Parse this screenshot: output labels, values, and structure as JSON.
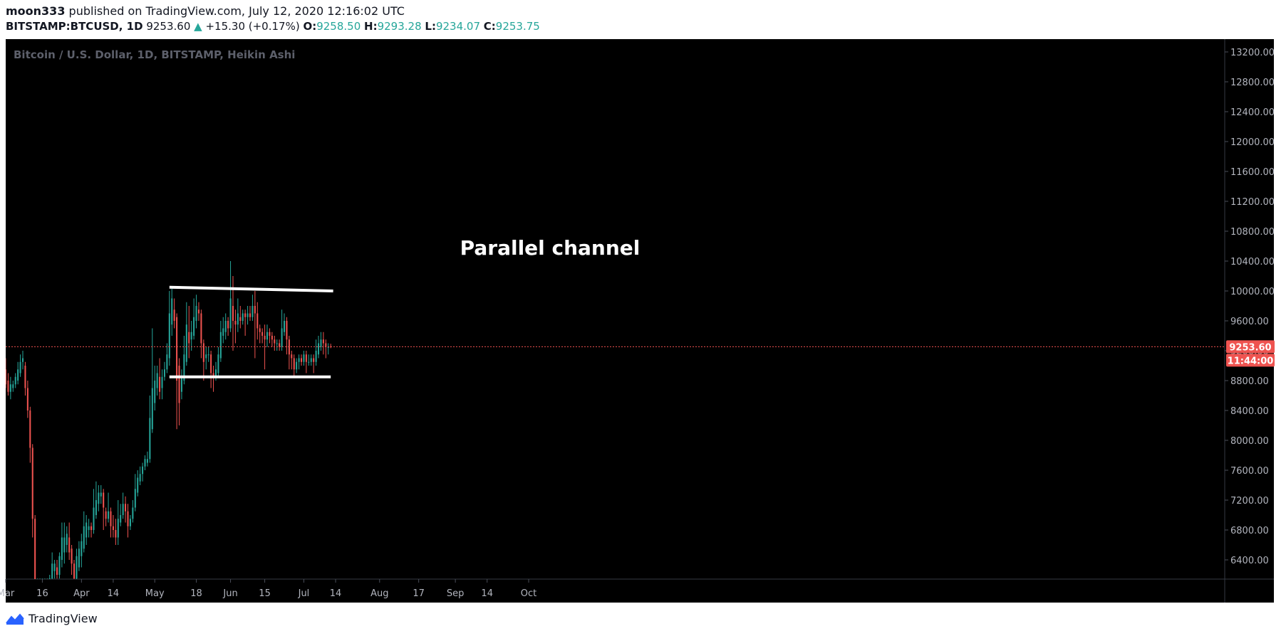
{
  "header": {
    "author": "moon333",
    "published_text": "published on TradingView.com, July 12, 2020 12:16:02 UTC",
    "symbol": "BITSTAMP:BTCUSD, 1D",
    "price": "9253.60",
    "change": "+15.30 (+0.17%)",
    "open_label": "O:",
    "open": "9258.50",
    "high_label": "H:",
    "high": "9293.28",
    "low_label": "L:",
    "low": "9234.07",
    "close_label": "C:",
    "close": "9253.75"
  },
  "chart_title": "Bitcoin / U.S. Dollar, 1D, BITSTAMP, Heikin Ashi",
  "annotation": "Parallel channel",
  "footer": {
    "brand": "TradingView"
  },
  "colors": {
    "bg": "#000000",
    "up": "#26a69a",
    "down": "#ef5350",
    "axis_text": "#b2b5be",
    "channel": "#ffffff",
    "label_bg": "#ef5350"
  },
  "price_label": "9253.60",
  "countdown_label": "11:44:00",
  "chart_data": {
    "type": "candlestick",
    "style": "Heikin Ashi",
    "grid": false,
    "ylim": [
      6150,
      13350
    ],
    "y_ticks": [
      13200,
      12800,
      12400,
      12000,
      11600,
      11200,
      10800,
      10400,
      10000,
      9600,
      9200,
      8800,
      8400,
      8000,
      7600,
      7200,
      6800,
      6400
    ],
    "y_tick_labels": [
      "13200.00",
      "12800.00",
      "12400.00",
      "12000.00",
      "11600.00",
      "11200.00",
      "10800.00",
      "10400.00",
      "10000.00",
      "9600.00",
      "9200.00",
      "8800.00",
      "8400.00",
      "8000.00",
      "7600.00",
      "7200.00",
      "6800.00",
      "6400.00"
    ],
    "x_tick_labels": [
      {
        "label": "Mar",
        "date": "2020-03-01"
      },
      {
        "label": "16",
        "date": "2020-03-16"
      },
      {
        "label": "Apr",
        "date": "2020-04-01"
      },
      {
        "label": "14",
        "date": "2020-04-14"
      },
      {
        "label": "May",
        "date": "2020-05-01"
      },
      {
        "label": "18",
        "date": "2020-05-18"
      },
      {
        "label": "Jun",
        "date": "2020-06-01"
      },
      {
        "label": "15",
        "date": "2020-06-15"
      },
      {
        "label": "Jul",
        "date": "2020-07-01"
      },
      {
        "label": "14",
        "date": "2020-07-14"
      },
      {
        "label": "Aug",
        "date": "2020-08-01"
      },
      {
        "label": "17",
        "date": "2020-08-17"
      },
      {
        "label": "Sep",
        "date": "2020-09-01"
      },
      {
        "label": "14",
        "date": "2020-09-14"
      },
      {
        "label": "Oct",
        "date": "2020-10-01"
      }
    ],
    "last_price": 9253.6,
    "channel_lines": [
      {
        "start": [
          "2020-05-07",
          10050
        ],
        "end": [
          "2020-07-13",
          10000
        ]
      },
      {
        "start": [
          "2020-05-07",
          8850
        ],
        "end": [
          "2020-07-12",
          8850
        ]
      }
    ],
    "candles": [
      {
        "date": "2020-03-01",
        "o": 8950,
        "h": 9100,
        "l": 8700,
        "c": 8750
      },
      {
        "date": "2020-03-02",
        "o": 8800,
        "h": 8900,
        "l": 8600,
        "c": 8650
      },
      {
        "date": "2020-03-03",
        "o": 8650,
        "h": 8850,
        "l": 8550,
        "c": 8750
      },
      {
        "date": "2020-03-04",
        "o": 8700,
        "h": 8800,
        "l": 8650,
        "c": 8750
      },
      {
        "date": "2020-03-05",
        "o": 8750,
        "h": 8900,
        "l": 8700,
        "c": 8850
      },
      {
        "date": "2020-03-06",
        "o": 8800,
        "h": 9050,
        "l": 8750,
        "c": 8950
      },
      {
        "date": "2020-03-07",
        "o": 8900,
        "h": 9150,
        "l": 8850,
        "c": 9050
      },
      {
        "date": "2020-03-08",
        "o": 9050,
        "h": 9200,
        "l": 8950,
        "c": 9100
      },
      {
        "date": "2020-03-09",
        "o": 9000,
        "h": 9050,
        "l": 8600,
        "c": 8700
      },
      {
        "date": "2020-03-10",
        "o": 8700,
        "h": 8800,
        "l": 8300,
        "c": 8400
      },
      {
        "date": "2020-03-11",
        "o": 8400,
        "h": 8450,
        "l": 7700,
        "c": 7900
      },
      {
        "date": "2020-03-12",
        "o": 7900,
        "h": 7950,
        "l": 6700,
        "c": 6950
      },
      {
        "date": "2020-03-13",
        "o": 6950,
        "h": 7000,
        "l": 6100,
        "c": 6100
      },
      {
        "date": "2020-03-14",
        "o": 6100,
        "h": 6150,
        "l": 6100,
        "c": 6100
      },
      {
        "date": "2020-03-15",
        "o": 6100,
        "h": 6150,
        "l": 6100,
        "c": 6100
      },
      {
        "date": "2020-03-16",
        "o": 6100,
        "h": 6150,
        "l": 6100,
        "c": 6100
      },
      {
        "date": "2020-03-17",
        "o": 6100,
        "h": 6150,
        "l": 6100,
        "c": 6100
      },
      {
        "date": "2020-03-18",
        "o": 6100,
        "h": 6150,
        "l": 6100,
        "c": 6100
      },
      {
        "date": "2020-03-19",
        "o": 6100,
        "h": 6200,
        "l": 6100,
        "c": 6150
      },
      {
        "date": "2020-03-20",
        "o": 6150,
        "h": 6500,
        "l": 6100,
        "c": 6350
      },
      {
        "date": "2020-03-21",
        "o": 6250,
        "h": 6400,
        "l": 6150,
        "c": 6350
      },
      {
        "date": "2020-03-22",
        "o": 6300,
        "h": 6400,
        "l": 6150,
        "c": 6200
      },
      {
        "date": "2020-03-23",
        "o": 6200,
        "h": 6500,
        "l": 6150,
        "c": 6450
      },
      {
        "date": "2020-03-24",
        "o": 6400,
        "h": 6900,
        "l": 6300,
        "c": 6700
      },
      {
        "date": "2020-03-25",
        "o": 6500,
        "h": 6900,
        "l": 6350,
        "c": 6700
      },
      {
        "date": "2020-03-26",
        "o": 6600,
        "h": 6850,
        "l": 6500,
        "c": 6750
      },
      {
        "date": "2020-03-27",
        "o": 6700,
        "h": 6900,
        "l": 6400,
        "c": 6500
      },
      {
        "date": "2020-03-28",
        "o": 6550,
        "h": 6600,
        "l": 6200,
        "c": 6350
      },
      {
        "date": "2020-03-29",
        "o": 6350,
        "h": 6400,
        "l": 6000,
        "c": 6150
      },
      {
        "date": "2020-03-30",
        "o": 6150,
        "h": 6550,
        "l": 6100,
        "c": 6450
      },
      {
        "date": "2020-03-31",
        "o": 6300,
        "h": 6650,
        "l": 6250,
        "c": 6550
      },
      {
        "date": "2020-04-01",
        "o": 6450,
        "h": 6750,
        "l": 6300,
        "c": 6650
      },
      {
        "date": "2020-04-02",
        "o": 6550,
        "h": 7050,
        "l": 6500,
        "c": 6850
      },
      {
        "date": "2020-04-03",
        "o": 6700,
        "h": 7000,
        "l": 6600,
        "c": 6900
      },
      {
        "date": "2020-04-04",
        "o": 6800,
        "h": 6950,
        "l": 6700,
        "c": 6850
      },
      {
        "date": "2020-04-05",
        "o": 6850,
        "h": 6900,
        "l": 6700,
        "c": 6800
      },
      {
        "date": "2020-04-06",
        "o": 6800,
        "h": 7350,
        "l": 6750,
        "c": 7100
      },
      {
        "date": "2020-04-07",
        "o": 7000,
        "h": 7450,
        "l": 6950,
        "c": 7200
      },
      {
        "date": "2020-04-08",
        "o": 7150,
        "h": 7400,
        "l": 7050,
        "c": 7300
      },
      {
        "date": "2020-04-09",
        "o": 7250,
        "h": 7400,
        "l": 7150,
        "c": 7300
      },
      {
        "date": "2020-04-10",
        "o": 7300,
        "h": 7350,
        "l": 6800,
        "c": 7100
      },
      {
        "date": "2020-04-11",
        "o": 7050,
        "h": 7100,
        "l": 6850,
        "c": 6950
      },
      {
        "date": "2020-04-12",
        "o": 6950,
        "h": 7300,
        "l": 6900,
        "c": 7050
      },
      {
        "date": "2020-04-13",
        "o": 7050,
        "h": 7100,
        "l": 6700,
        "c": 6850
      },
      {
        "date": "2020-04-14",
        "o": 6850,
        "h": 7000,
        "l": 6700,
        "c": 6800
      },
      {
        "date": "2020-04-15",
        "o": 6800,
        "h": 6950,
        "l": 6600,
        "c": 6700
      },
      {
        "date": "2020-04-16",
        "o": 6700,
        "h": 7200,
        "l": 6600,
        "c": 6950
      },
      {
        "date": "2020-04-17",
        "o": 6900,
        "h": 7150,
        "l": 6850,
        "c": 7000
      },
      {
        "date": "2020-04-18",
        "o": 7000,
        "h": 7300,
        "l": 6950,
        "c": 7150
      },
      {
        "date": "2020-04-19",
        "o": 7150,
        "h": 7250,
        "l": 6900,
        "c": 7050
      },
      {
        "date": "2020-04-20",
        "o": 7050,
        "h": 7150,
        "l": 6700,
        "c": 6850
      },
      {
        "date": "2020-04-21",
        "o": 6850,
        "h": 7000,
        "l": 6800,
        "c": 6950
      },
      {
        "date": "2020-04-22",
        "o": 6950,
        "h": 7200,
        "l": 6900,
        "c": 7100
      },
      {
        "date": "2020-04-23",
        "o": 7100,
        "h": 7550,
        "l": 7050,
        "c": 7350
      },
      {
        "date": "2020-04-24",
        "o": 7300,
        "h": 7600,
        "l": 7250,
        "c": 7500
      },
      {
        "date": "2020-04-25",
        "o": 7450,
        "h": 7650,
        "l": 7400,
        "c": 7550
      },
      {
        "date": "2020-04-26",
        "o": 7550,
        "h": 7700,
        "l": 7450,
        "c": 7650
      },
      {
        "date": "2020-04-27",
        "o": 7650,
        "h": 7800,
        "l": 7600,
        "c": 7750
      },
      {
        "date": "2020-04-28",
        "o": 7700,
        "h": 7850,
        "l": 7650,
        "c": 7750
      },
      {
        "date": "2020-04-29",
        "o": 7750,
        "h": 8600,
        "l": 7700,
        "c": 8300
      },
      {
        "date": "2020-04-30",
        "o": 8150,
        "h": 9500,
        "l": 8100,
        "c": 8700
      },
      {
        "date": "2020-05-01",
        "o": 8500,
        "h": 9000,
        "l": 8400,
        "c": 8800
      },
      {
        "date": "2020-05-02",
        "o": 8700,
        "h": 9000,
        "l": 8600,
        "c": 8900
      },
      {
        "date": "2020-05-03",
        "o": 8850,
        "h": 9100,
        "l": 8550,
        "c": 8650
      },
      {
        "date": "2020-05-04",
        "o": 8700,
        "h": 8950,
        "l": 8550,
        "c": 8850
      },
      {
        "date": "2020-05-05",
        "o": 8850,
        "h": 9050,
        "l": 8800,
        "c": 8950
      },
      {
        "date": "2020-05-06",
        "o": 8950,
        "h": 9300,
        "l": 8900,
        "c": 9150
      },
      {
        "date": "2020-05-07",
        "o": 9100,
        "h": 10000,
        "l": 9000,
        "c": 9700
      },
      {
        "date": "2020-05-08",
        "o": 9550,
        "h": 10050,
        "l": 9400,
        "c": 9900
      },
      {
        "date": "2020-05-09",
        "o": 9750,
        "h": 9900,
        "l": 9500,
        "c": 9600
      },
      {
        "date": "2020-05-10",
        "o": 9650,
        "h": 9700,
        "l": 8150,
        "c": 8800
      },
      {
        "date": "2020-05-11",
        "o": 9000,
        "h": 9100,
        "l": 8200,
        "c": 8500
      },
      {
        "date": "2020-05-12",
        "o": 8650,
        "h": 8950,
        "l": 8550,
        "c": 8850
      },
      {
        "date": "2020-05-13",
        "o": 8800,
        "h": 9400,
        "l": 8750,
        "c": 9150
      },
      {
        "date": "2020-05-14",
        "o": 9050,
        "h": 9850,
        "l": 9000,
        "c": 9550
      },
      {
        "date": "2020-05-15",
        "o": 9450,
        "h": 9800,
        "l": 9100,
        "c": 9300
      },
      {
        "date": "2020-05-16",
        "o": 9350,
        "h": 9600,
        "l": 9200,
        "c": 9450
      },
      {
        "date": "2020-05-17",
        "o": 9400,
        "h": 9900,
        "l": 9350,
        "c": 9650
      },
      {
        "date": "2020-05-18",
        "o": 9600,
        "h": 9950,
        "l": 9500,
        "c": 9800
      },
      {
        "date": "2020-05-19",
        "o": 9750,
        "h": 9850,
        "l": 9600,
        "c": 9700
      },
      {
        "date": "2020-05-20",
        "o": 9700,
        "h": 9750,
        "l": 9100,
        "c": 9300
      },
      {
        "date": "2020-05-21",
        "o": 9300,
        "h": 9350,
        "l": 8800,
        "c": 9050
      },
      {
        "date": "2020-05-22",
        "o": 9100,
        "h": 9250,
        "l": 8950,
        "c": 9150
      },
      {
        "date": "2020-05-23",
        "o": 9150,
        "h": 9250,
        "l": 9050,
        "c": 9150
      },
      {
        "date": "2020-05-24",
        "o": 9150,
        "h": 9200,
        "l": 8700,
        "c": 8900
      },
      {
        "date": "2020-05-25",
        "o": 8900,
        "h": 9000,
        "l": 8650,
        "c": 8850
      },
      {
        "date": "2020-05-26",
        "o": 8850,
        "h": 9050,
        "l": 8800,
        "c": 8950
      },
      {
        "date": "2020-05-27",
        "o": 8900,
        "h": 9250,
        "l": 8850,
        "c": 9150
      },
      {
        "date": "2020-05-28",
        "o": 9100,
        "h": 9600,
        "l": 9050,
        "c": 9450
      },
      {
        "date": "2020-05-29",
        "o": 9400,
        "h": 9650,
        "l": 9300,
        "c": 9500
      },
      {
        "date": "2020-05-30",
        "o": 9450,
        "h": 9700,
        "l": 9350,
        "c": 9600
      },
      {
        "date": "2020-05-31",
        "o": 9600,
        "h": 9650,
        "l": 9400,
        "c": 9500
      },
      {
        "date": "2020-06-01",
        "o": 9500,
        "h": 10400,
        "l": 9450,
        "c": 9900
      },
      {
        "date": "2020-06-02",
        "o": 9800,
        "h": 10200,
        "l": 9200,
        "c": 9600
      },
      {
        "date": "2020-06-03",
        "o": 9600,
        "h": 9750,
        "l": 9300,
        "c": 9550
      },
      {
        "date": "2020-06-04",
        "o": 9550,
        "h": 9900,
        "l": 9450,
        "c": 9700
      },
      {
        "date": "2020-06-05",
        "o": 9650,
        "h": 9800,
        "l": 9500,
        "c": 9600
      },
      {
        "date": "2020-06-06",
        "o": 9600,
        "h": 9750,
        "l": 9550,
        "c": 9700
      },
      {
        "date": "2020-06-07",
        "o": 9700,
        "h": 9750,
        "l": 9400,
        "c": 9650
      },
      {
        "date": "2020-06-08",
        "o": 9650,
        "h": 9800,
        "l": 9550,
        "c": 9700
      },
      {
        "date": "2020-06-09",
        "o": 9700,
        "h": 9800,
        "l": 9600,
        "c": 9650
      },
      {
        "date": "2020-06-10",
        "o": 9650,
        "h": 9950,
        "l": 9600,
        "c": 9800
      },
      {
        "date": "2020-06-11",
        "o": 9800,
        "h": 10000,
        "l": 9100,
        "c": 9700
      },
      {
        "date": "2020-06-12",
        "o": 9700,
        "h": 9850,
        "l": 9350,
        "c": 9500
      },
      {
        "date": "2020-06-13",
        "o": 9500,
        "h": 9550,
        "l": 9300,
        "c": 9450
      },
      {
        "date": "2020-06-14",
        "o": 9450,
        "h": 9500,
        "l": 9300,
        "c": 9400
      },
      {
        "date": "2020-06-15",
        "o": 9400,
        "h": 9550,
        "l": 8950,
        "c": 9350
      },
      {
        "date": "2020-06-16",
        "o": 9350,
        "h": 9550,
        "l": 9250,
        "c": 9450
      },
      {
        "date": "2020-06-17",
        "o": 9450,
        "h": 9500,
        "l": 9300,
        "c": 9400
      },
      {
        "date": "2020-06-18",
        "o": 9400,
        "h": 9450,
        "l": 9250,
        "c": 9350
      },
      {
        "date": "2020-06-19",
        "o": 9350,
        "h": 9400,
        "l": 9200,
        "c": 9300
      },
      {
        "date": "2020-06-20",
        "o": 9300,
        "h": 9350,
        "l": 9200,
        "c": 9300
      },
      {
        "date": "2020-06-21",
        "o": 9300,
        "h": 9350,
        "l": 9200,
        "c": 9250
      },
      {
        "date": "2020-06-22",
        "o": 9250,
        "h": 9750,
        "l": 9200,
        "c": 9500
      },
      {
        "date": "2020-06-23",
        "o": 9450,
        "h": 9700,
        "l": 9400,
        "c": 9600
      },
      {
        "date": "2020-06-24",
        "o": 9600,
        "h": 9650,
        "l": 9150,
        "c": 9350
      },
      {
        "date": "2020-06-25",
        "o": 9350,
        "h": 9400,
        "l": 8950,
        "c": 9150
      },
      {
        "date": "2020-06-26",
        "o": 9150,
        "h": 9200,
        "l": 8950,
        "c": 9100
      },
      {
        "date": "2020-06-27",
        "o": 9100,
        "h": 9150,
        "l": 8850,
        "c": 8950
      },
      {
        "date": "2020-06-28",
        "o": 8950,
        "h": 9100,
        "l": 8900,
        "c": 9050
      },
      {
        "date": "2020-06-29",
        "o": 9050,
        "h": 9150,
        "l": 8950,
        "c": 9100
      },
      {
        "date": "2020-06-30",
        "o": 9100,
        "h": 9150,
        "l": 9000,
        "c": 9050
      },
      {
        "date": "2020-07-01",
        "o": 9050,
        "h": 9200,
        "l": 9000,
        "c": 9150
      },
      {
        "date": "2020-07-02",
        "o": 9150,
        "h": 9200,
        "l": 8900,
        "c": 9050
      },
      {
        "date": "2020-07-03",
        "o": 9050,
        "h": 9150,
        "l": 9000,
        "c": 9050
      },
      {
        "date": "2020-07-04",
        "o": 9050,
        "h": 9150,
        "l": 9000,
        "c": 9100
      },
      {
        "date": "2020-07-05",
        "o": 9100,
        "h": 9150,
        "l": 8900,
        "c": 9050
      },
      {
        "date": "2020-07-06",
        "o": 9050,
        "h": 9350,
        "l": 9000,
        "c": 9200
      },
      {
        "date": "2020-07-07",
        "o": 9150,
        "h": 9400,
        "l": 9100,
        "c": 9300
      },
      {
        "date": "2020-07-08",
        "o": 9250,
        "h": 9450,
        "l": 9200,
        "c": 9350
      },
      {
        "date": "2020-07-09",
        "o": 9350,
        "h": 9450,
        "l": 9150,
        "c": 9300
      },
      {
        "date": "2020-07-10",
        "o": 9300,
        "h": 9350,
        "l": 9100,
        "c": 9250
      },
      {
        "date": "2020-07-11",
        "o": 9250,
        "h": 9300,
        "l": 9150,
        "c": 9250
      },
      {
        "date": "2020-07-12",
        "o": 9258.5,
        "h": 9293.28,
        "l": 9234.07,
        "c": 9253.75
      }
    ]
  }
}
